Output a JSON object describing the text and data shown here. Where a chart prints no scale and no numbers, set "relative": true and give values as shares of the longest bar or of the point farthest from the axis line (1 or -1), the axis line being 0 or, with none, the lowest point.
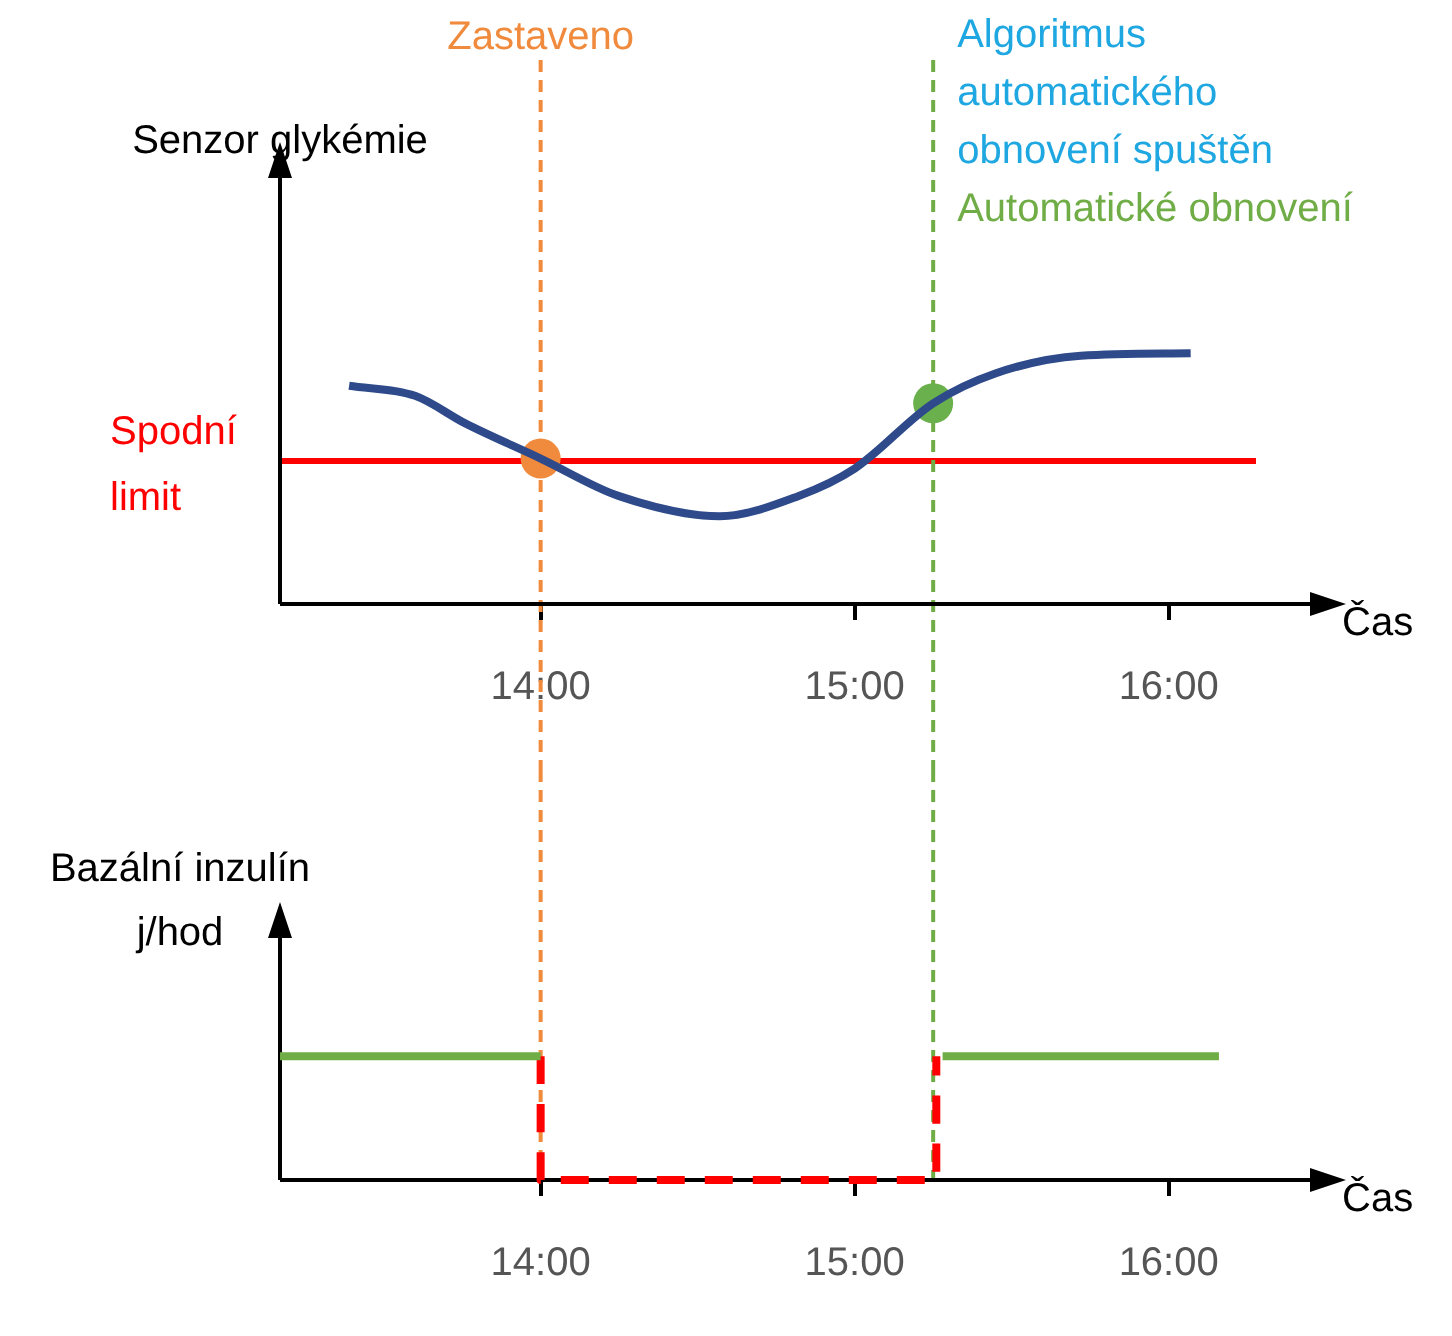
{
  "chart_data": [
    {
      "type": "line",
      "ylabel": "Senzor glykémie",
      "xlabel": "Čas",
      "relative": true,
      "xlim": [
        13.17,
        16.45
      ],
      "xticks": [
        {
          "value": 14,
          "label": "14:00"
        },
        {
          "value": 15,
          "label": "15:00"
        },
        {
          "value": 16,
          "label": "16:00"
        }
      ],
      "series": [
        {
          "type": "line",
          "color": "#2e4a8a",
          "x": [
            13.39,
            13.6,
            13.76,
            14.0,
            14.25,
            14.57,
            14.82,
            15.0,
            15.25,
            15.45,
            15.72,
            16.07
          ],
          "values": [
            0.87,
            0.83,
            0.72,
            0.58,
            0.43,
            0.35,
            0.43,
            0.54,
            0.8,
            0.92,
            0.99,
            1
          ]
        },
        {
          "type": "scatter",
          "marker": "circle",
          "colors": [
            "#f08a3c",
            "#6ab04c"
          ],
          "x": [
            14.0,
            15.25
          ],
          "values": [
            0.58,
            0.8
          ]
        }
      ],
      "ref_lines": [
        {
          "axis": "y",
          "value": 0.57,
          "label": "Spodní limit",
          "color": "#ff0000"
        },
        {
          "axis": "x",
          "value": 14.0,
          "label": "Zastaveno",
          "color": "#f08a3c",
          "line_style": "dashed"
        },
        {
          "axis": "x",
          "value": 15.25,
          "label": "Automatické obnovení",
          "color": "#70ad47",
          "line_style": "dashed"
        }
      ],
      "annotations": [
        "Algoritmus automatického obnovení spuštěn"
      ]
    },
    {
      "type": "line",
      "ylabel": "Bazální inzulín j/hod",
      "xlabel": "Čas",
      "relative": true,
      "xlim": [
        13.17,
        16.45
      ],
      "xticks": [
        {
          "value": 14,
          "label": "14:00"
        },
        {
          "value": 15,
          "label": "15:00"
        },
        {
          "value": 16,
          "label": "16:00"
        }
      ],
      "series": [
        {
          "type": "line",
          "color": "#70ad47",
          "x": [
            13.17,
            14.0,
            14.5,
            15.28,
            16.16
          ],
          "values": [
            1,
            1,
            null,
            1,
            1
          ]
        },
        {
          "type": "line",
          "color": "#ff0000",
          "line_style": "dashed",
          "x": [
            14.0,
            14.0,
            15.26,
            15.26
          ],
          "values": [
            1,
            0,
            0,
            1
          ]
        }
      ],
      "ref_lines": [
        {
          "axis": "x",
          "value": 14.0,
          "color": "#f08a3c",
          "line_style": "dashed"
        },
        {
          "axis": "x",
          "value": 15.25,
          "color": "#70ad47",
          "line_style": "dashed"
        }
      ]
    }
  ]
}
